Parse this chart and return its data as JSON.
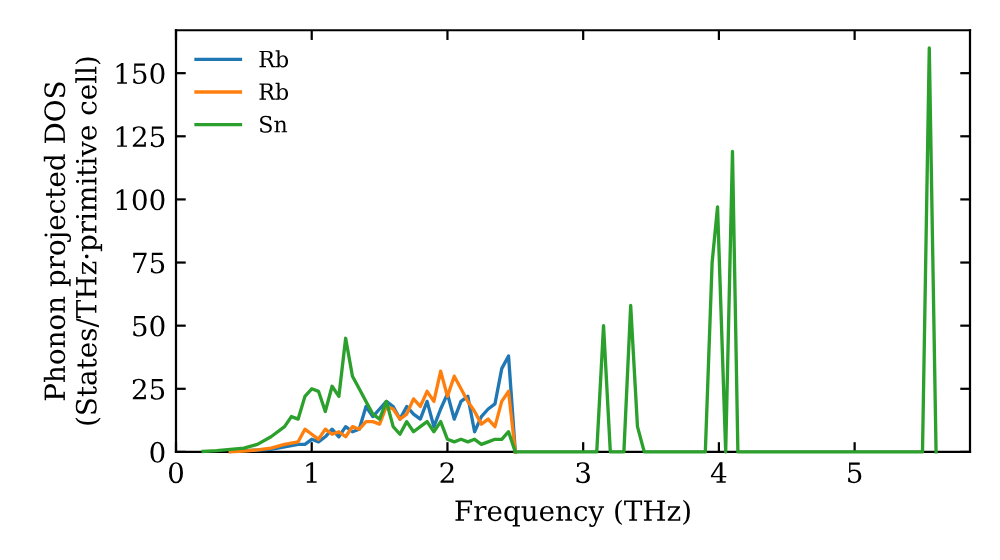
{
  "chart_data": {
    "type": "line",
    "xlabel": "Frequency (THz)",
    "ylabel": "Phonon projected DOS\n(States/THz·primitive cell)",
    "series": [
      {
        "name": "Rb",
        "color": "#1f77b4",
        "x": [
          0.4,
          0.5,
          0.6,
          0.7,
          0.8,
          0.85,
          0.9,
          0.95,
          1.0,
          1.05,
          1.1,
          1.15,
          1.2,
          1.25,
          1.3,
          1.35,
          1.4,
          1.45,
          1.5,
          1.55,
          1.6,
          1.65,
          1.7,
          1.75,
          1.8,
          1.85,
          1.9,
          1.95,
          2.0,
          2.05,
          2.1,
          2.15,
          2.2,
          2.25,
          2.3,
          2.35,
          2.4,
          2.45,
          2.5
        ],
        "values": [
          0.2,
          0.5,
          0.7,
          1,
          2,
          2.5,
          3,
          3,
          5,
          4,
          6,
          9,
          6,
          10,
          8,
          9,
          18,
          14,
          17,
          20,
          18,
          13,
          18,
          15,
          13,
          20,
          10,
          17,
          23,
          13,
          20,
          22,
          8,
          14,
          17,
          19,
          33,
          38,
          0
        ]
      },
      {
        "name": "Rb",
        "color": "#ff7f0e",
        "x": [
          0.4,
          0.5,
          0.6,
          0.7,
          0.8,
          0.85,
          0.9,
          0.95,
          1.0,
          1.05,
          1.1,
          1.15,
          1.2,
          1.25,
          1.3,
          1.35,
          1.4,
          1.45,
          1.5,
          1.55,
          1.6,
          1.65,
          1.7,
          1.75,
          1.8,
          1.85,
          1.9,
          1.95,
          2.0,
          2.05,
          2.1,
          2.15,
          2.2,
          2.25,
          2.3,
          2.35,
          2.4,
          2.45,
          2.5
        ],
        "values": [
          0.1,
          0.3,
          0.8,
          1.5,
          3,
          3.5,
          4,
          9,
          7,
          5,
          9,
          7,
          8,
          6,
          10,
          9,
          12,
          12,
          11,
          18,
          17,
          13,
          15,
          21,
          18,
          24,
          20,
          32,
          22,
          30,
          25,
          20,
          16,
          11,
          13,
          10,
          20,
          24,
          0
        ]
      },
      {
        "name": "Sn",
        "color": "#2ca02c",
        "x": [
          0.2,
          0.3,
          0.4,
          0.5,
          0.6,
          0.7,
          0.8,
          0.85,
          0.9,
          0.95,
          1.0,
          1.05,
          1.1,
          1.15,
          1.2,
          1.25,
          1.3,
          1.35,
          1.4,
          1.45,
          1.5,
          1.55,
          1.6,
          1.65,
          1.7,
          1.75,
          1.8,
          1.85,
          1.9,
          1.95,
          2.0,
          2.05,
          2.1,
          2.15,
          2.2,
          2.25,
          2.3,
          2.35,
          2.4,
          2.45,
          2.5,
          3.1,
          3.15,
          3.2,
          3.3,
          3.35,
          3.4,
          3.45,
          3.9,
          3.95,
          3.99,
          4.05,
          4.1,
          4.14,
          5.5,
          5.55,
          5.6
        ],
        "values": [
          0.2,
          0.5,
          1,
          1.5,
          3,
          6,
          10,
          14,
          13,
          22,
          25,
          24,
          16,
          26,
          22,
          45,
          30,
          25,
          20,
          15,
          13,
          20,
          10,
          7,
          12,
          8,
          10,
          12,
          8,
          12,
          5,
          4,
          5,
          4,
          5,
          3,
          4,
          5,
          5,
          8,
          0,
          0,
          50,
          0,
          0,
          58,
          10,
          0,
          0,
          75,
          97,
          0,
          119,
          0,
          0,
          160,
          0
        ]
      }
    ],
    "xlim": [
      0,
      5.85
    ],
    "ylim": [
      0,
      167
    ],
    "xticks": [
      0,
      1,
      2,
      3,
      4,
      5
    ],
    "yticks": [
      0,
      25,
      50,
      75,
      100,
      125,
      150
    ],
    "legend": "top left",
    "grid": false,
    "marker": "none",
    "line_style": "solid"
  }
}
